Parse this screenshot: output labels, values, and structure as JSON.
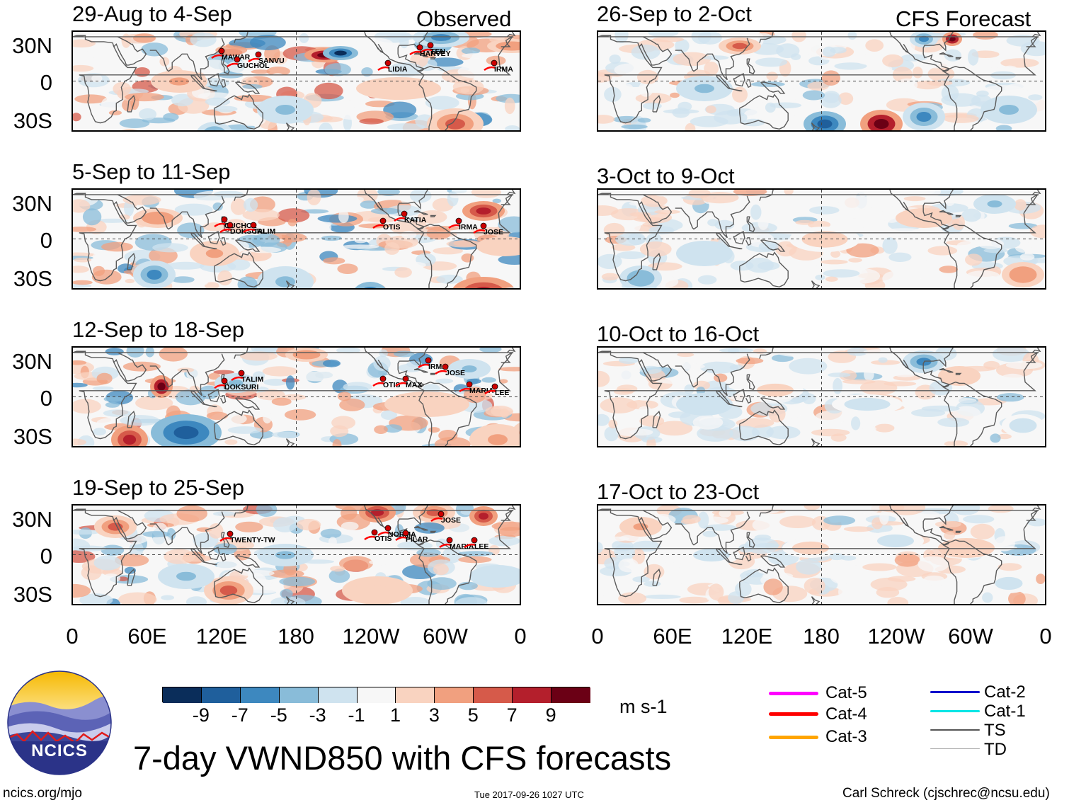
{
  "column_labels": {
    "observed": "Observed",
    "forecast": "CFS Forecast"
  },
  "lat_labels": [
    "30N",
    "0",
    "30S"
  ],
  "lon_labels": [
    "0",
    "60E",
    "120E",
    "180",
    "120W",
    "60W",
    "0"
  ],
  "panels": [
    {
      "title": "29-Aug to 4-Sep",
      "storms": [
        "MAWAR",
        "GUCHOL",
        "SANVU",
        "TEN",
        "HARVEY",
        "LIDIA",
        "IRMA"
      ]
    },
    {
      "title": "5-Sep to 11-Sep",
      "storms": [
        "GUCHOL",
        "DOKSURI",
        "TALIM",
        "OTIS",
        "KATIA",
        "IRMA",
        "JOSE"
      ]
    },
    {
      "title": "12-Sep to 18-Sep",
      "storms": [
        "TALIM",
        "DOKSURI",
        "OTIS",
        "MAX",
        "IRMA",
        "JOSE",
        "MARIA",
        "LEE"
      ]
    },
    {
      "title": "19-Sep to 25-Sep",
      "storms": [
        "TWENTY-TW",
        "OTIS",
        "NORMA",
        "PILAR",
        "JOSE",
        "MARIA",
        "LEE"
      ]
    },
    {
      "title": "26-Sep to 2-Oct",
      "storms": []
    },
    {
      "title": "3-Oct to 9-Oct",
      "storms": []
    },
    {
      "title": "10-Oct to 16-Oct",
      "storms": []
    },
    {
      "title": "17-Oct to 23-Oct",
      "storms": []
    }
  ],
  "colorbar": {
    "ticks": [
      "-9",
      "-7",
      "-5",
      "-3",
      "-1",
      "1",
      "3",
      "5",
      "7",
      "9"
    ],
    "colors": [
      "#0a2d5a",
      "#1f5f9c",
      "#3d88bf",
      "#89bcd9",
      "#cfe3ef",
      "#f7f7f7",
      "#f9d3c0",
      "#f1a07f",
      "#d65a4a",
      "#b41f2c",
      "#6b0015"
    ],
    "units": "m s-1"
  },
  "legend": {
    "items": [
      {
        "label": "Cat-5",
        "color": "#ff00ff"
      },
      {
        "label": "Cat-4",
        "color": "#ff0000"
      },
      {
        "label": "Cat-3",
        "color": "#ffa500"
      },
      {
        "label": "Cat-2",
        "color": "#0000cc"
      },
      {
        "label": "Cat-1",
        "color": "#00e5e5"
      },
      {
        "label": "TS",
        "color": "#555555"
      },
      {
        "label": "TD",
        "color": "#aaaaaa"
      }
    ]
  },
  "logo_text": "NCICS",
  "main_title": "7-day VWND850 with CFS forecasts",
  "footer": {
    "url": "ncics.org/mjo",
    "timestamp": "Tue 2017-09-26 1027 UTC",
    "credit": "Carl Schreck (cjschrec@ncsu.edu)"
  }
}
